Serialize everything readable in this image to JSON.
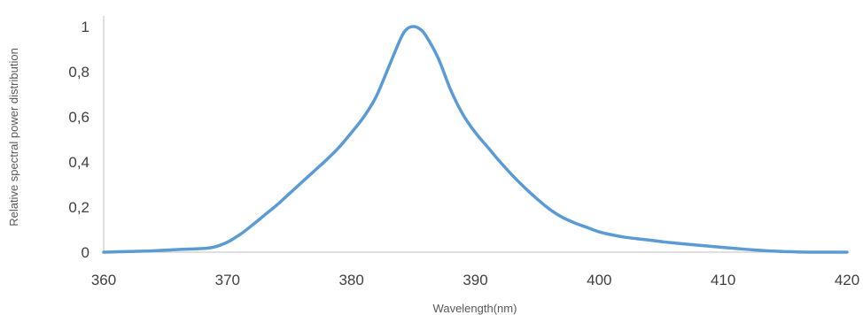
{
  "chart_data": {
    "type": "line",
    "xlabel": "Wavelength(nm)",
    "ylabel": "Relative spectral power distribution",
    "xlim": [
      360,
      420
    ],
    "ylim": [
      0,
      1
    ],
    "x_ticks": [
      "360",
      "370",
      "380",
      "390",
      "400",
      "410",
      "420"
    ],
    "y_ticks": [
      "0",
      "0,2",
      "0,4",
      "0,6",
      "0,8",
      "1"
    ],
    "grid": false,
    "legend": "none",
    "colors": {
      "series": "#5b9bd5",
      "axis": "#bfbfbf",
      "text": "#404040"
    },
    "series": [
      {
        "x": [
          360,
          362,
          364,
          366,
          368,
          369,
          370,
          371,
          372,
          373,
          374,
          375,
          376,
          377,
          378,
          379,
          380,
          381,
          382,
          383,
          384,
          384.5,
          385,
          385.5,
          386,
          387,
          388,
          389,
          390,
          391,
          392,
          393,
          394,
          395,
          396,
          397,
          398,
          399,
          400,
          401,
          402,
          403,
          404,
          405,
          406,
          408,
          410,
          412,
          414,
          416,
          418,
          420
        ],
        "values": [
          0.0,
          0.003,
          0.006,
          0.012,
          0.016,
          0.024,
          0.045,
          0.078,
          0.12,
          0.165,
          0.21,
          0.26,
          0.31,
          0.36,
          0.41,
          0.465,
          0.53,
          0.6,
          0.69,
          0.82,
          0.95,
          0.99,
          1.0,
          0.99,
          0.96,
          0.86,
          0.72,
          0.61,
          0.53,
          0.465,
          0.4,
          0.34,
          0.285,
          0.235,
          0.19,
          0.155,
          0.13,
          0.11,
          0.09,
          0.077,
          0.067,
          0.06,
          0.054,
          0.047,
          0.041,
          0.031,
          0.021,
          0.012,
          0.005,
          0.001,
          0.0,
          0.0
        ]
      }
    ]
  }
}
